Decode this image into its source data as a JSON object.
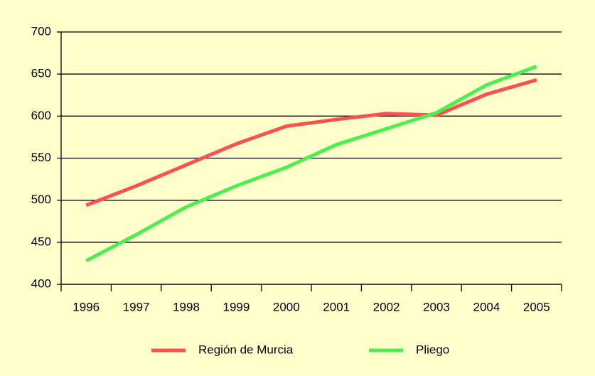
{
  "chart_data": {
    "type": "line",
    "categories": [
      "1996",
      "1997",
      "1998",
      "1999",
      "2000",
      "2001",
      "2002",
      "2003",
      "2004",
      "2005"
    ],
    "series": [
      {
        "name": "Región de Murcia",
        "color": "#ff5050",
        "values": [
          494,
          517,
          542,
          567,
          588,
          596,
          603,
          601,
          626,
          643
        ]
      },
      {
        "name": "Pliego",
        "color": "#4cf04c",
        "values": [
          428,
          459,
          492,
          517,
          539,
          566,
          585,
          604,
          637,
          659
        ]
      }
    ],
    "ylim": [
      400,
      700
    ],
    "yticks": [
      400,
      450,
      500,
      550,
      600,
      650,
      700
    ],
    "grid": true,
    "legend": "bottom"
  }
}
